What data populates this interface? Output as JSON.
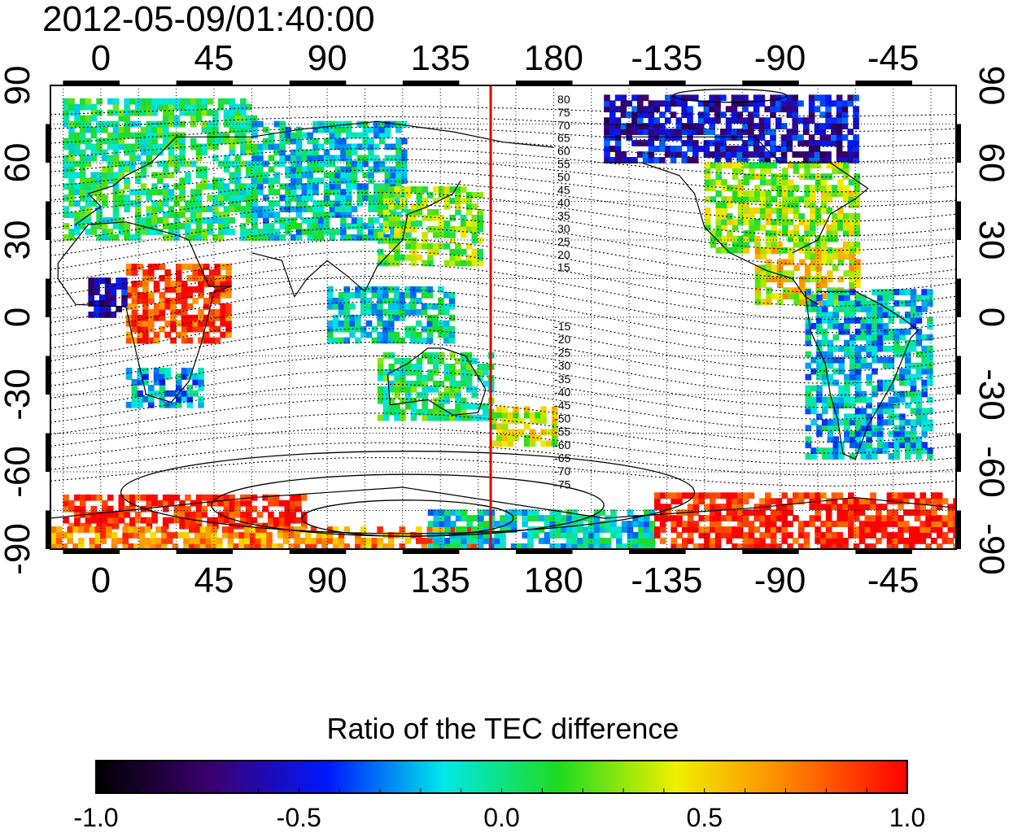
{
  "title": "2012-05-09/01:40:00",
  "colorbar": {
    "title": "Ratio of the TEC difference",
    "min": -1.0,
    "max": 1.0,
    "tick_labels": [
      "-1.0",
      "-0.5",
      "0.0",
      "0.5",
      "1.0"
    ],
    "colors": [
      "#000000",
      "#3b0070",
      "#0018ff",
      "#00e8e8",
      "#1edc1e",
      "#f0f000",
      "#ff8000",
      "#ff0000"
    ]
  },
  "axes": {
    "lon_labels": [
      "0",
      "45",
      "90",
      "135",
      "180",
      "-135",
      "-90",
      "-45"
    ],
    "lat_labels": [
      "90",
      "60",
      "30",
      "0",
      "-30",
      "-60",
      "-90"
    ]
  },
  "map": {
    "lon_range": [
      -20,
      340
    ],
    "lat_range": [
      -90,
      90
    ],
    "red_meridian_lon": 155,
    "contour_labels_north": [
      "80",
      "75",
      "70",
      "65",
      "60",
      "55",
      "50",
      "45",
      "40",
      "35",
      "30",
      "25",
      "20",
      "15"
    ],
    "contour_labels_south": [
      "-15",
      "-20",
      "-25",
      "-30",
      "-35",
      "-40",
      "-45",
      "-50",
      "-55",
      "-60",
      "-65",
      "-70",
      "-75"
    ],
    "data_regions": [
      {
        "lon": [
          -15,
          60
        ],
        "lat": [
          30,
          85
        ],
        "value": 0.05
      },
      {
        "lon": [
          60,
          120
        ],
        "lat": [
          30,
          75
        ],
        "value": -0.1
      },
      {
        "lon": [
          110,
          150
        ],
        "lat": [
          20,
          50
        ],
        "value": 0.25
      },
      {
        "lon": [
          200,
          300
        ],
        "lat": [
          60,
          85
        ],
        "value": -0.55
      },
      {
        "lon": [
          240,
          300
        ],
        "lat": [
          25,
          60
        ],
        "value": 0.3
      },
      {
        "lon": [
          260,
          300
        ],
        "lat": [
          5,
          25
        ],
        "value": 0.45
      },
      {
        "lon": [
          280,
          330
        ],
        "lat": [
          -55,
          10
        ],
        "value": -0.15
      },
      {
        "lon": [
          10,
          50
        ],
        "lat": [
          -10,
          20
        ],
        "value": 0.85
      },
      {
        "lon": [
          -5,
          10
        ],
        "lat": [
          0,
          15
        ],
        "value": -0.6
      },
      {
        "lon": [
          10,
          40
        ],
        "lat": [
          -35,
          -20
        ],
        "value": -0.2
      },
      {
        "lon": [
          90,
          140
        ],
        "lat": [
          -10,
          10
        ],
        "value": -0.1
      },
      {
        "lon": [
          110,
          155
        ],
        "lat": [
          -40,
          -15
        ],
        "value": 0.05
      },
      {
        "lon": [
          155,
          180
        ],
        "lat": [
          -50,
          -35
        ],
        "value": 0.35
      },
      {
        "lon": [
          -15,
          80
        ],
        "lat": [
          -82,
          -70
        ],
        "value": 0.95
      },
      {
        "lon": [
          -20,
          150
        ],
        "lat": [
          -90,
          -82
        ],
        "value": 0.7
      },
      {
        "lon": [
          130,
          220
        ],
        "lat": [
          -90,
          -75
        ],
        "value": -0.1
      },
      {
        "lon": [
          220,
          340
        ],
        "lat": [
          -90,
          -70
        ],
        "value": 0.95
      }
    ]
  }
}
